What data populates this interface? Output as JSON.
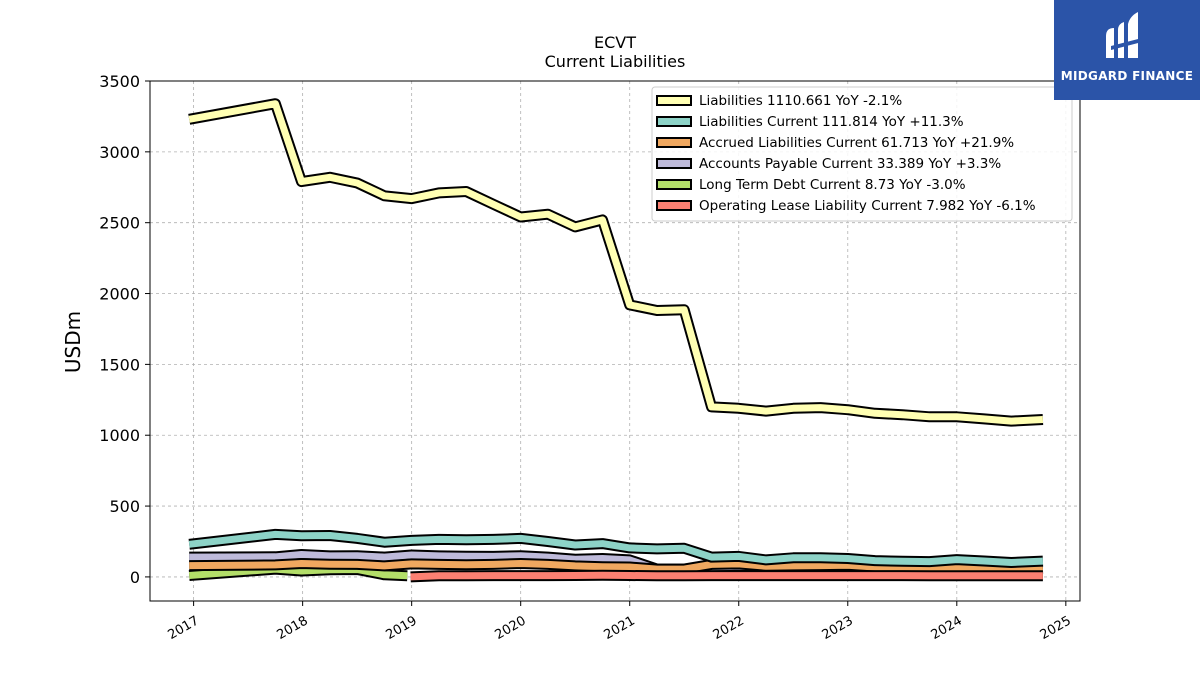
{
  "brand": {
    "name": "MIDGARD FINANCE",
    "bg_color": "#2b54a8"
  },
  "chart_data": {
    "type": "line",
    "title": "ECVT",
    "subtitle": "Current  Liabilities",
    "ylabel": "USDm",
    "xlabel": "",
    "ylim": [
      -170,
      3500
    ],
    "xlim": [
      2016.6,
      2025.13
    ],
    "yticks": [
      0,
      500,
      1000,
      1500,
      2000,
      2500,
      3000,
      3500
    ],
    "xticks": [
      "2017",
      "2018",
      "2019",
      "2020",
      "2021",
      "2022",
      "2023",
      "2024",
      "2025"
    ],
    "grid": true,
    "legend_position": "top-right",
    "series": [
      {
        "name": "Liabilities",
        "legend": "Liabilities  1110.661 YoY -2.1%",
        "color": "#ffffb3",
        "x": [
          2016.96,
          2017.75,
          2017.99,
          2018.25,
          2018.5,
          2018.75,
          2019.0,
          2019.25,
          2019.5,
          2019.75,
          2020.0,
          2020.25,
          2020.5,
          2020.75,
          2021.0,
          2021.25,
          2021.5,
          2021.75,
          2022.0,
          2022.25,
          2022.5,
          2022.75,
          2023.0,
          2023.25,
          2023.5,
          2023.75,
          2024.0,
          2024.25,
          2024.5,
          2024.79
        ],
        "y": [
          3230,
          3340,
          2790,
          2820,
          2780,
          2690,
          2670,
          2710,
          2720,
          2630,
          2540,
          2560,
          2470,
          2520,
          1920,
          1880,
          1885,
          1200,
          1190,
          1170,
          1190,
          1195,
          1180,
          1155,
          1145,
          1130,
          1130,
          1115,
          1100,
          1110.661
        ]
      },
      {
        "name": "Liabilities Current",
        "legend": "Liabilities Current  111.814 YoY +11.3%",
        "color": "#8dd3c7",
        "x": [
          2016.96,
          2017.75,
          2017.99,
          2018.25,
          2018.5,
          2018.75,
          2019.0,
          2019.25,
          2019.5,
          2019.75,
          2020.0,
          2020.25,
          2020.5,
          2020.75,
          2021.0,
          2021.25,
          2021.5,
          2021.75,
          2022.0,
          2022.25,
          2022.5,
          2022.75,
          2023.0,
          2023.25,
          2023.5,
          2023.75,
          2024.0,
          2024.25,
          2024.5,
          2024.79
        ],
        "y": [
          230,
          300,
          290,
          292,
          272,
          245,
          258,
          265,
          262,
          265,
          272,
          250,
          225,
          235,
          205,
          198,
          202,
          140,
          145,
          120,
          135,
          135,
          130,
          115,
          110,
          108,
          122,
          112,
          102,
          111.814
        ]
      },
      {
        "name": "Accrued Liabilities Current",
        "legend": "Accrued Liabilities Current  61.713 YoY +21.9%",
        "color": "#f0a860",
        "x": [
          2016.96,
          2017.75,
          2017.99,
          2018.25,
          2018.5,
          2018.75,
          2019.0,
          2019.25,
          2019.5,
          2019.75,
          2020.0,
          2020.25,
          2020.5,
          2020.75,
          2021.0,
          2021.25,
          2021.5,
          2021.75,
          2022.0,
          2022.25,
          2022.5,
          2022.75,
          2023.0,
          2023.25,
          2023.5,
          2023.75,
          2024.0,
          2024.25,
          2024.5,
          2024.79
        ],
        "y": [
          80,
          85,
          95,
          90,
          88,
          78,
          92,
          88,
          86,
          88,
          95,
          88,
          78,
          72,
          70,
          55,
          55,
          88,
          92,
          75,
          78,
          80,
          82,
          70,
          65,
          60,
          62,
          58,
          52,
          61.713
        ]
      },
      {
        "name": "Accounts Payable Current",
        "legend": "Accounts Payable Current  33.389 YoY +3.3%",
        "color": "#bebada",
        "x": [
          2016.96,
          2017.75,
          2017.99,
          2018.25,
          2018.5,
          2018.75,
          2019.0,
          2019.25,
          2019.5,
          2019.75,
          2020.0,
          2020.25,
          2020.5,
          2020.75,
          2021.0,
          2021.25,
          2021.5,
          2021.75,
          2022.0,
          2022.25,
          2022.5,
          2022.75,
          2023.0,
          2023.25,
          2023.5,
          2023.75,
          2024.0,
          2024.25,
          2024.5,
          2024.79
        ],
        "y": [
          140,
          142,
          158,
          148,
          150,
          140,
          155,
          148,
          146,
          145,
          150,
          140,
          125,
          130,
          120,
          55,
          55,
          70,
          75,
          70,
          75,
          72,
          55,
          45,
          42,
          40,
          42,
          38,
          32,
          33.389
        ]
      },
      {
        "name": "Long Term Debt Current",
        "legend": "Long Term Debt Current  8.73 YoY -3.0%",
        "color": "#b3de69",
        "x": [
          2016.96,
          2017.75,
          2017.99,
          2018.25,
          2018.5,
          2018.75,
          2018.96
        ],
        "y": [
          10,
          55,
          42,
          50,
          52,
          15,
          8.73
        ]
      },
      {
        "name": "Operating Lease Liability Current",
        "legend": "Operating Lease Liability Current  7.982 YoY -6.1%",
        "color": "#fb8072",
        "x": [
          2018.99,
          2019.25,
          2019.5,
          2019.75,
          2020.0,
          2020.25,
          2020.5,
          2020.75,
          2021.0,
          2021.25,
          2021.5,
          2021.75,
          2022.0,
          2022.25,
          2022.5,
          2022.75,
          2023.0,
          2023.25,
          2023.5,
          2023.75,
          2024.0,
          2024.25,
          2024.5,
          2024.79
        ],
        "y": [
          0,
          8,
          8,
          9,
          9,
          9,
          10,
          12,
          10,
          8,
          8,
          9,
          9,
          9,
          9,
          9,
          9,
          9,
          9,
          8.5,
          8.5,
          8.2,
          8.0,
          7.982
        ]
      }
    ]
  }
}
